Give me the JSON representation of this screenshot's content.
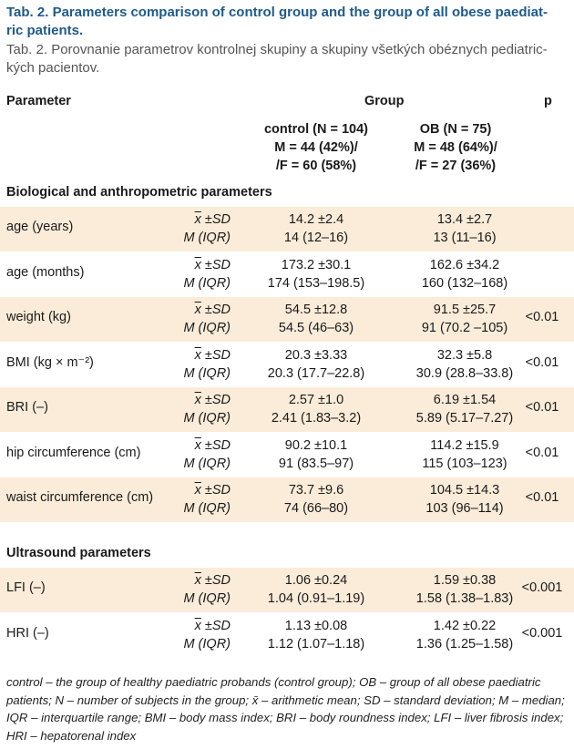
{
  "title": "Tab. 2. Parameters comparison of control group and the group of all obese paediat­ric patients.",
  "title_lines": [
    "Tab. 2. Parameters comparison of control group and the group of all obese paediat-",
    "ric patients."
  ],
  "subtitle_lines": [
    "Tab. 2. Porovnanie parametrov kontrolnej skupiny a skupiny všetkých obéznych pediatric-",
    "kých pacientov."
  ],
  "header": {
    "parameter": "Parameter",
    "group": "Group",
    "p": "p",
    "control": [
      "control (N = 104)",
      "M = 44 (42%)/",
      "/F = 60 (58%)"
    ],
    "ob": [
      "OB (N = 75)",
      "M = 48 (64%)/",
      "/F = 27 (36%)"
    ]
  },
  "stat_labels": {
    "mean": "x",
    "mean_sd": " ±SD",
    "median": "M (IQR)"
  },
  "sections": {
    "bio": "Biological and anthropometric parameters",
    "us": "Ultrasound parameters"
  },
  "rows": [
    {
      "param": "age (years)",
      "c1": "14.2 ±2.4",
      "c2": "14 (12–16)",
      "o1": "13.4 ±2.7",
      "o2": "13 (11–16)",
      "p": ""
    },
    {
      "param": "age (months)",
      "c1": "173.2 ±30.1",
      "c2": "174 (153–198.5)",
      "o1": "162.6 ±34.2",
      "o2": "160 (132–168)",
      "p": ""
    },
    {
      "param": "weight (kg)",
      "c1": "54.5 ±12.8",
      "c2": "54.5 (46–63)",
      "o1": "91.5 ±25.7",
      "o2": "91 (70.2 –105)",
      "p": "<0.01"
    },
    {
      "param": "BMI (kg × m⁻²)",
      "c1": "20.3 ±3.33",
      "c2": "20.3 (17.7–22.8)",
      "o1": "32.3 ±5.8",
      "o2": "30.9 (28.8–33.8)",
      "p": "<0.01"
    },
    {
      "param": "BRI (–)",
      "c1": "2.57 ±1.0",
      "c2": "2.41 (1.83–3.2)",
      "o1": "6.19 ±1.54",
      "o2": "5.89 (5.17–7.27)",
      "p": "<0.01"
    },
    {
      "param": "hip circumference (cm)",
      "c1": "90.2 ±10.1",
      "c2": "91 (83.5–97)",
      "o1": "114.2 ±15.9",
      "o2": "115 (103–123)",
      "p": "<0.01"
    },
    {
      "param": "waist circumference (cm)",
      "c1": "73.7 ±9.6",
      "c2": "74 (66–80)",
      "o1": "104.5 ±14.3",
      "o2": "103 (96–114)",
      "p": "<0.01"
    },
    {
      "param": "LFI (–)",
      "c1": "1.06 ±0.24",
      "c2": "1.04 (0.91–1.19)",
      "o1": "1.59 ±0.38",
      "o2": "1.58 (1.38–1.83)",
      "p": "<0.001"
    },
    {
      "param": "HRI (–)",
      "c1": "1.13 ±0.08",
      "c2": "1.12 (1.07–1.18)",
      "o1": "1.42 ±0.22",
      "o2": "1.36 (1.25–1.58)",
      "p": "<0.001"
    }
  ],
  "footnote": "control – the group of healthy paediatric probands (control group); OB – group of all obese paediatric patients; N – number of subjects in the group; x̄ – arithmetic mean; SD – standard deviation; M – median; IQR – interquartile range; BMI – body mass index; BRI – body roundness index; LFI – liver fibrosis index; HRI – hepatorenal index",
  "colors": {
    "title": "#1f5a8a",
    "shade": "#fbecd9"
  }
}
